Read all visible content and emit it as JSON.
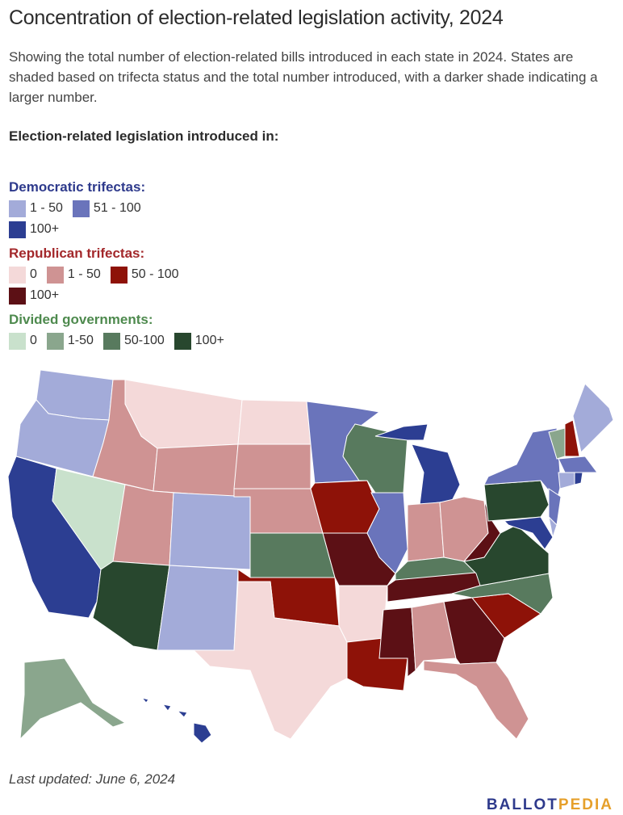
{
  "title": "Concentration of election-related legislation activity, 2024",
  "subtitle": "Showing the total number of election-related bills introduced in each state in 2024. States are shaded based on trifecta status and the total number introduced, with a darker shade indicating a larger number.",
  "legend": {
    "heading": "Election-related legislation introduced in:",
    "groups": [
      {
        "label": "Democratic trifectas:",
        "color": "#2e3a8c",
        "items": [
          {
            "label": "1 - 50",
            "color": "#a3abd9"
          },
          {
            "label": "51 - 100",
            "color": "#6a74bb"
          },
          {
            "label": "100+",
            "color": "#2c3e92"
          }
        ]
      },
      {
        "label": "Republican trifectas:",
        "color": "#a3282b",
        "items": [
          {
            "label": "0",
            "color": "#f4d9d9"
          },
          {
            "label": "1 - 50",
            "color": "#cf9393"
          },
          {
            "label": "50 - 100",
            "color": "#8e1208"
          },
          {
            "label": "100+",
            "color": "#5c1015"
          }
        ]
      },
      {
        "label": "Divided governments:",
        "color": "#4e8a4e",
        "items": [
          {
            "label": "0",
            "color": "#c9e1cc"
          },
          {
            "label": "1-50",
            "color": "#8aa68d"
          },
          {
            "label": "50-100",
            "color": "#587a5e"
          },
          {
            "label": "100+",
            "color": "#28472e"
          }
        ]
      }
    ]
  },
  "footer": "Last updated: June 6, 2024",
  "logo": {
    "first": "BALLOT",
    "second": "PEDIA"
  }
}
